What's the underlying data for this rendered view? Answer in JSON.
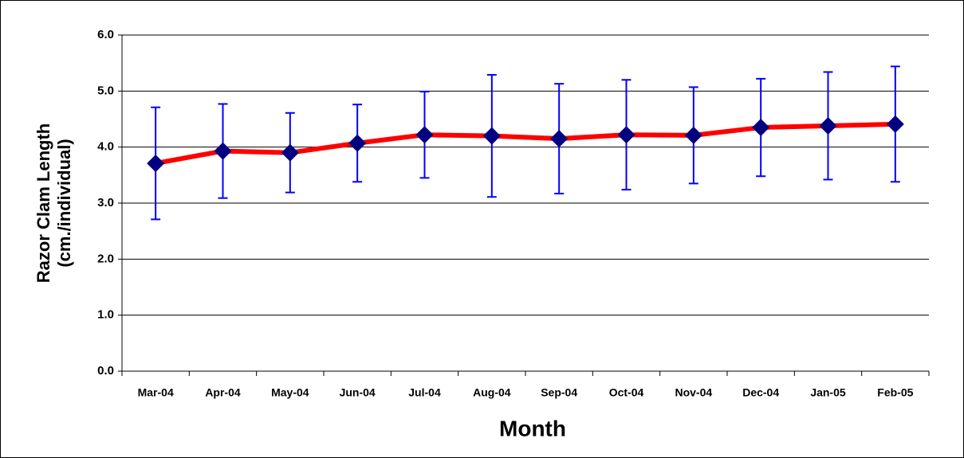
{
  "chart_data": {
    "type": "line",
    "x_label": "Month",
    "y_label": [
      "Razor Clam Length",
      "(cm./individual)"
    ],
    "categories": [
      "Mar-04",
      "Apr-04",
      "May-04",
      "Jun-04",
      "Jul-04",
      "Aug-04",
      "Sep-04",
      "Oct-04",
      "Nov-04",
      "Dec-04",
      "Jan-05",
      "Feb-05"
    ],
    "values": [
      3.71,
      3.93,
      3.9,
      4.07,
      4.22,
      4.2,
      4.15,
      4.22,
      4.21,
      4.35,
      4.38,
      4.41
    ],
    "errors": [
      1.0,
      0.84,
      0.71,
      0.69,
      0.77,
      1.09,
      0.98,
      0.98,
      0.86,
      0.87,
      0.96,
      1.03
    ],
    "color": "#ff0000",
    "marker_color": "#000080",
    "error_color": "#0000ff",
    "ylim": [
      0,
      6
    ],
    "yticks": [
      {
        "value": 0,
        "label": "0.0"
      },
      {
        "value": 1,
        "label": "1.0"
      },
      {
        "value": 2,
        "label": "2.0"
      },
      {
        "value": 3,
        "label": "3.0"
      },
      {
        "value": 4,
        "label": "4.0"
      },
      {
        "value": 5,
        "label": "5.0"
      },
      {
        "value": 6,
        "label": "6.0"
      }
    ],
    "grid": true
  }
}
